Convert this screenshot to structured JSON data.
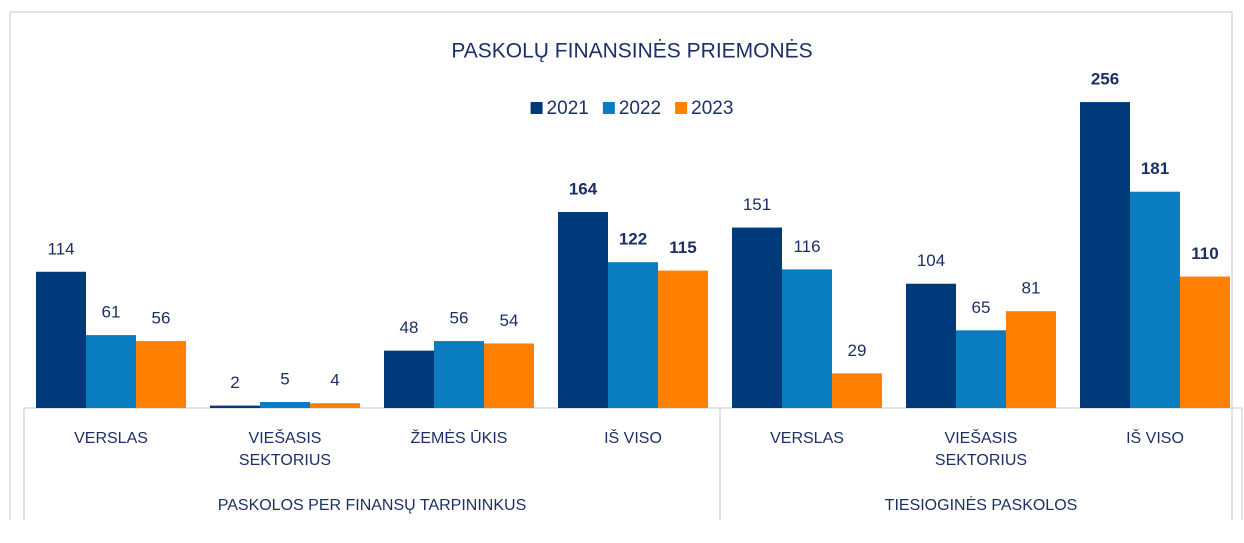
{
  "chart_data": {
    "type": "bar",
    "title": "PASKOLŲ FINANSINĖS PRIEMONĖS",
    "groups": [
      {
        "name": "PASKOLOS PER FINANSŲ TARPININKUS",
        "categories": [
          "VERSLAS",
          "VIEŠASIS SEKTORIUS",
          "ŽEMĖS ŪKIS",
          "IŠ VISO"
        ]
      },
      {
        "name": "TIESIOGINĖS PASKOLOS",
        "categories": [
          "VERSLAS",
          "VIEŠASIS SEKTORIUS",
          "IŠ VISO"
        ]
      }
    ],
    "emphasized_categories": [
      "IŠ VISO"
    ],
    "series": [
      {
        "name": "2021",
        "color": "#003a7a",
        "values": [
          114,
          2,
          48,
          164,
          151,
          104,
          256
        ]
      },
      {
        "name": "2022",
        "color": "#0a7dc0",
        "values": [
          61,
          5,
          56,
          122,
          116,
          65,
          181
        ]
      },
      {
        "name": "2023",
        "color": "#ff8000",
        "values": [
          56,
          4,
          54,
          115,
          29,
          81,
          110
        ]
      }
    ],
    "ylim": [
      0,
      300
    ],
    "legend": "top"
  }
}
